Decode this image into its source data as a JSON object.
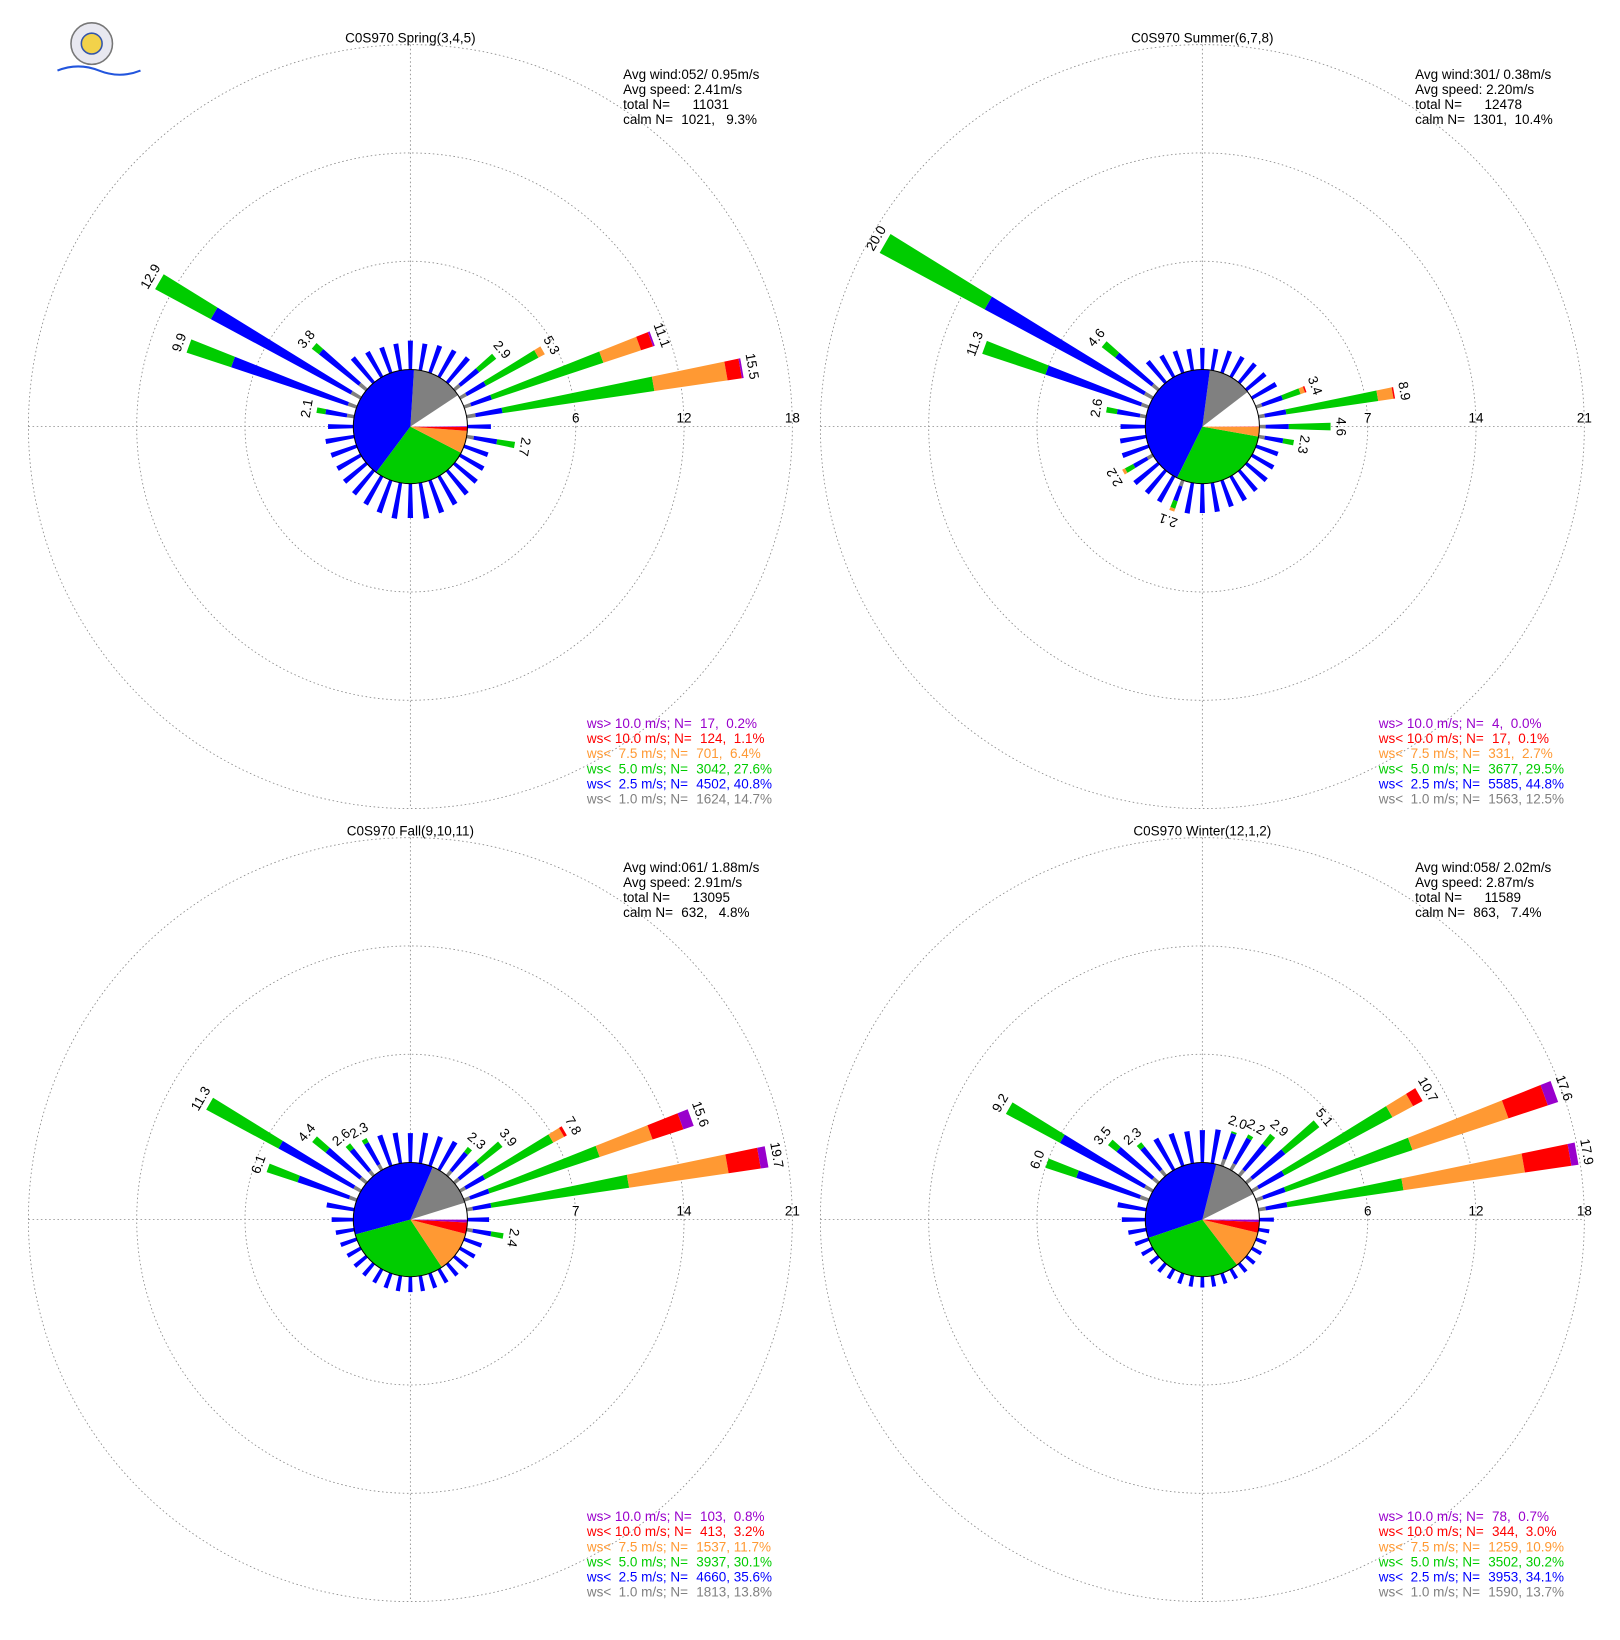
{
  "chart_data": [
    {
      "type": "windrose",
      "title": "C0S970 Spring(3,4,5)",
      "stats": [
        "Avg wind:052/ 0.95m/s",
        "Avg speed: 2.41m/s",
        "total N=      11031"
      ],
      "calm": {
        "label": "calm N=",
        "n": 1021,
        "pct": {
          "value": 9.3,
          "label": ",   9.3%"
        }
      },
      "ylim": [
        0,
        18
      ],
      "yticks": [
        6,
        12,
        18
      ],
      "series": [
        {
          "name": "ws<  1.0 m/s; N=",
          "color": "#808080",
          "n": 1624,
          "pct": {
            "value": 14.7,
            "label": ", 14.7%"
          }
        },
        {
          "name": "ws<  2.5 m/s; N=",
          "color": "#0000ff",
          "n": 4502,
          "pct": {
            "value": 40.8,
            "label": ", 40.8%"
          }
        },
        {
          "name": "ws<  5.0 m/s; N=",
          "color": "#00cc00",
          "n": 3042,
          "pct": {
            "value": 27.6,
            "label": ", 27.6%"
          }
        },
        {
          "name": "ws<  7.5 m/s; N=",
          "color": "#ff9933",
          "n": 701,
          "pct": {
            "value": 6.4,
            "label": ",  6.4%"
          }
        },
        {
          "name": "ws< 10.0 m/s; N=",
          "color": "#ff0000",
          "n": 124,
          "pct": {
            "value": 1.1,
            "label": ",  1.1%"
          }
        },
        {
          "name": "ws> 10.0 m/s; N=",
          "color": "#9900cc",
          "n": 17,
          "pct": {
            "value": 0.2,
            "label": ",  0.2%"
          }
        }
      ],
      "spokes": [
        {
          "dir": 50,
          "values": [
            0.4,
            1.3,
            1.2
          ],
          "total": {
            "value": 2.9,
            "label": "2.9"
          }
        },
        {
          "dir": 60,
          "values": [
            0.4,
            1.2,
            3.3,
            0.4
          ],
          "total": {
            "value": 5.3,
            "label": "5.3"
          }
        },
        {
          "dir": 70,
          "values": [
            0.4,
            1.2,
            6.5,
            2.2,
            0.7,
            0.1
          ],
          "total": {
            "value": 11.1,
            "label": "11.1"
          }
        },
        {
          "dir": 80,
          "values": [
            0.5,
            1.5,
            8.5,
            4.1,
            0.8,
            0.1
          ],
          "total": {
            "value": 15.5,
            "label": "15.5"
          }
        },
        {
          "dir": 100,
          "values": [
            0.4,
            1.3,
            1.0
          ],
          "total": {
            "value": 2.7,
            "label": "2.7"
          }
        },
        {
          "dir": 280,
          "values": [
            0.4,
            1.2,
            0.5
          ],
          "total": {
            "value": 2.1,
            "label": "2.1"
          }
        },
        {
          "dir": 290,
          "values": [
            0.5,
            6.8,
            2.6
          ],
          "total": {
            "value": 9.9,
            "label": "9.9"
          }
        },
        {
          "dir": 300,
          "values": [
            0.6,
            8.8,
            3.5
          ],
          "total": {
            "value": 12.9,
            "label": "12.9"
          }
        },
        {
          "dir": 310,
          "values": [
            0.5,
            2.8,
            0.5
          ],
          "total": {
            "value": 3.8,
            "label": "3.8"
          }
        }
      ],
      "minor": [
        1.6,
        1.5,
        1.6,
        1.7,
        1.8,
        null,
        null,
        null,
        null,
        1.3,
        null,
        1.4,
        1.5,
        1.6,
        1.7,
        1.8,
        1.9,
        2.0,
        1.9,
        2.0,
        1.9,
        1.8,
        1.7,
        1.6,
        1.5,
        1.5,
        1.6,
        1.4,
        null,
        null,
        null,
        null,
        1.8,
        1.6,
        1.5,
        1.5
      ]
    },
    {
      "type": "windrose",
      "title": "C0S970 Summer(6,7,8)",
      "stats": [
        "Avg wind:301/ 0.38m/s",
        "Avg speed: 2.20m/s",
        "total N=      12478"
      ],
      "calm": {
        "label": "calm N=",
        "n": 1301,
        "pct": {
          "value": 10.4,
          "label": ",  10.4%"
        }
      },
      "ylim": [
        0,
        21
      ],
      "yticks": [
        7,
        14,
        21
      ],
      "series": [
        {
          "name": "ws<  1.0 m/s; N=",
          "color": "#808080",
          "n": 1563,
          "pct": {
            "value": 12.5,
            "label": ", 12.5%"
          }
        },
        {
          "name": "ws<  2.5 m/s; N=",
          "color": "#0000ff",
          "n": 5585,
          "pct": {
            "value": 44.8,
            "label": ", 44.8%"
          }
        },
        {
          "name": "ws<  5.0 m/s; N=",
          "color": "#00cc00",
          "n": 3677,
          "pct": {
            "value": 29.5,
            "label": ", 29.5%"
          }
        },
        {
          "name": "ws<  7.5 m/s; N=",
          "color": "#ff9933",
          "n": 331,
          "pct": {
            "value": 2.7,
            "label": ",  2.7%"
          }
        },
        {
          "name": "ws< 10.0 m/s; N=",
          "color": "#ff0000",
          "n": 17,
          "pct": {
            "value": 0.1,
            "label": ",  0.1%"
          }
        },
        {
          "name": "ws> 10.0 m/s; N=",
          "color": "#9900cc",
          "n": 4,
          "pct": {
            "value": 0,
            "label": ",  0.0%"
          }
        }
      ],
      "spokes": [
        {
          "dir": 70,
          "values": [
            0.4,
            1.4,
            1.2,
            0.3,
            0.1
          ],
          "total": {
            "value": 3.4,
            "label": "3.4"
          }
        },
        {
          "dir": 80,
          "values": [
            0.4,
            1.4,
            6.0,
            1.0,
            0.1
          ],
          "total": {
            "value": 8.9,
            "label": "8.9"
          }
        },
        {
          "dir": 90,
          "values": [
            0.4,
            1.5,
            2.7
          ],
          "total": {
            "value": 4.6,
            "label": "4.6"
          }
        },
        {
          "dir": 100,
          "values": [
            0.4,
            1.2,
            0.7
          ],
          "total": {
            "value": 2.3,
            "label": "2.3"
          }
        },
        {
          "dir": 200,
          "values": [
            0.4,
            1.0,
            0.5,
            0.2
          ],
          "total": {
            "value": 2.1,
            "label": "2.1"
          }
        },
        {
          "dir": 240,
          "values": [
            0.4,
            1.0,
            0.6,
            0.2
          ],
          "total": {
            "value": 2.2,
            "label": "2.2"
          }
        },
        {
          "dir": 280,
          "values": [
            0.4,
            1.5,
            0.7
          ],
          "total": {
            "value": 2.6,
            "label": "2.6"
          }
        },
        {
          "dir": 290,
          "values": [
            0.5,
            6.5,
            4.3
          ],
          "total": {
            "value": 11.3,
            "label": "11.3"
          }
        },
        {
          "dir": 300,
          "values": [
            0.6,
            11.7,
            7.7
          ],
          "total": {
            "value": 20,
            "label": "20.0"
          }
        },
        {
          "dir": 310,
          "values": [
            0.5,
            3.0,
            1.1
          ],
          "total": {
            "value": 4.6,
            "label": "4.6"
          }
        }
      ],
      "minor": [
        1.4,
        1.4,
        1.5,
        1.5,
        1.6,
        1.6,
        1.8,
        null,
        null,
        null,
        null,
        1.5,
        1.6,
        1.7,
        1.7,
        1.8,
        1.8,
        1.9,
        1.9,
        2.0,
        null,
        1.9,
        1.9,
        2.0,
        null,
        1.8,
        1.7,
        1.6,
        null,
        null,
        null,
        null,
        1.8,
        1.6,
        1.5,
        1.4
      ]
    },
    {
      "type": "windrose",
      "title": "C0S970 Fall(9,10,11)",
      "stats": [
        "Avg wind:061/ 1.88m/s",
        "Avg speed: 2.91m/s",
        "total N=      13095"
      ],
      "calm": {
        "label": "calm N=",
        "n": 632,
        "pct": {
          "value": 4.8,
          "label": ",   4.8%"
        }
      },
      "ylim": [
        0,
        21
      ],
      "yticks": [
        7,
        14,
        21
      ],
      "series": [
        {
          "name": "ws<  1.0 m/s; N=",
          "color": "#808080",
          "n": 1813,
          "pct": {
            "value": 13.8,
            "label": ", 13.8%"
          }
        },
        {
          "name": "ws<  2.5 m/s; N=",
          "color": "#0000ff",
          "n": 4660,
          "pct": {
            "value": 35.6,
            "label": ", 35.6%"
          }
        },
        {
          "name": "ws<  5.0 m/s; N=",
          "color": "#00cc00",
          "n": 3937,
          "pct": {
            "value": 30.1,
            "label": ", 30.1%"
          }
        },
        {
          "name": "ws<  7.5 m/s; N=",
          "color": "#ff9933",
          "n": 1537,
          "pct": {
            "value": 11.7,
            "label": ", 11.7%"
          }
        },
        {
          "name": "ws< 10.0 m/s; N=",
          "color": "#ff0000",
          "n": 413,
          "pct": {
            "value": 3.2,
            "label": ",  3.2%"
          }
        },
        {
          "name": "ws> 10.0 m/s; N=",
          "color": "#9900cc",
          "n": 103,
          "pct": {
            "value": 0.8,
            "label": ",  0.8%"
          }
        }
      ],
      "spokes": [
        {
          "dir": 40,
          "values": [
            0.4,
            1.5,
            0.4
          ],
          "total": {
            "value": 2.3,
            "label": "2.3"
          }
        },
        {
          "dir": 50,
          "values": [
            0.4,
            1.6,
            1.9
          ],
          "total": {
            "value": 3.9,
            "label": "3.9"
          }
        },
        {
          "dir": 60,
          "values": [
            0.4,
            1.4,
            5.0,
            0.8,
            0.2
          ],
          "total": {
            "value": 7.8,
            "label": "7.8"
          }
        },
        {
          "dir": 70,
          "values": [
            0.4,
            1.3,
            7.5,
            3.6,
            2.1,
            0.7
          ],
          "total": {
            "value": 15.6,
            "label": "15.6"
          }
        },
        {
          "dir": 80,
          "values": [
            0.4,
            1.2,
            9.0,
            6.5,
            2.1,
            0.5
          ],
          "total": {
            "value": 19.7,
            "label": "19.7"
          }
        },
        {
          "dir": 100,
          "values": [
            0.4,
            1.2,
            0.8
          ],
          "total": {
            "value": 2.4,
            "label": "2.4"
          }
        },
        {
          "dir": 290,
          "values": [
            0.5,
            3.5,
            2.1
          ],
          "total": {
            "value": 6.1,
            "label": "6.1"
          }
        },
        {
          "dir": 300,
          "values": [
            0.5,
            5.5,
            5.3
          ],
          "total": {
            "value": 11.3,
            "label": "11.3"
          }
        },
        {
          "dir": 310,
          "values": [
            0.5,
            2.8,
            1.1
          ],
          "total": {
            "value": 4.4,
            "label": "4.4"
          }
        },
        {
          "dir": 320,
          "values": [
            0.4,
            1.8,
            0.4
          ],
          "total": {
            "value": 2.6,
            "label": "2.6"
          }
        },
        {
          "dir": 330,
          "values": [
            0.4,
            1.6,
            0.3
          ],
          "total": {
            "value": 2.3,
            "label": "2.3"
          }
        }
      ],
      "minor": [
        1.9,
        2.0,
        2.0,
        2.1,
        null,
        null,
        null,
        null,
        null,
        1.4,
        null,
        1.2,
        1.1,
        1.1,
        1.0,
        1.0,
        1.0,
        1.0,
        1.0,
        1.0,
        1.0,
        1.0,
        1.0,
        1.0,
        1.0,
        1.1,
        1.2,
        1.4,
        1.8,
        null,
        null,
        null,
        null,
        null,
        2.1,
        2.0
      ]
    },
    {
      "type": "windrose",
      "title": "C0S970 Winter(12,1,2)",
      "stats": [
        "Avg wind:058/ 2.02m/s",
        "Avg speed: 2.87m/s",
        "total N=      11589"
      ],
      "calm": {
        "label": "calm N=",
        "n": 863,
        "pct": {
          "value": 7.4,
          "label": ",   7.4%"
        }
      },
      "ylim": [
        0,
        18
      ],
      "yticks": [
        6,
        12,
        18
      ],
      "series": [
        {
          "name": "ws<  1.0 m/s; N=",
          "color": "#808080",
          "n": 1590,
          "pct": {
            "value": 13.7,
            "label": ", 13.7%"
          }
        },
        {
          "name": "ws<  2.5 m/s; N=",
          "color": "#0000ff",
          "n": 3953,
          "pct": {
            "value": 34.1,
            "label": ", 34.1%"
          }
        },
        {
          "name": "ws<  5.0 m/s; N=",
          "color": "#00cc00",
          "n": 3502,
          "pct": {
            "value": 30.2,
            "label": ", 30.2%"
          }
        },
        {
          "name": "ws<  7.5 m/s; N=",
          "color": "#ff9933",
          "n": 1259,
          "pct": {
            "value": 10.9,
            "label": ", 10.9%"
          }
        },
        {
          "name": "ws< 10.0 m/s; N=",
          "color": "#ff0000",
          "n": 344,
          "pct": {
            "value": 3,
            "label": ",  3.0%"
          }
        },
        {
          "name": "ws> 10.0 m/s; N=",
          "color": "#9900cc",
          "n": 78,
          "pct": {
            "value": 0.7,
            "label": ",  0.7%"
          }
        }
      ],
      "spokes": [
        {
          "dir": 20,
          "values": [
            0.4,
            1.5,
            0.1
          ],
          "total": {
            "value": 2,
            "label": "2.0"
          }
        },
        {
          "dir": 30,
          "values": [
            0.4,
            1.6,
            0.2
          ],
          "total": {
            "value": 2.2,
            "label": "2.2"
          }
        },
        {
          "dir": 40,
          "values": [
            0.4,
            1.8,
            0.7
          ],
          "total": {
            "value": 2.9,
            "label": "2.9"
          }
        },
        {
          "dir": 50,
          "values": [
            0.4,
            2.3,
            2.4
          ],
          "total": {
            "value": 5.1,
            "label": "5.1"
          }
        },
        {
          "dir": 60,
          "values": [
            0.4,
            1.6,
            6.8,
            1.3,
            0.6
          ],
          "total": {
            "value": 10.7,
            "label": "10.7"
          }
        },
        {
          "dir": 70,
          "values": [
            0.4,
            1.3,
            7.4,
            5.6,
            2.3,
            0.6
          ],
          "total": {
            "value": 17.6,
            "label": "17.6"
          }
        },
        {
          "dir": 80,
          "values": [
            0.4,
            1.2,
            6.5,
            6.8,
            2.6,
            0.4
          ],
          "total": {
            "value": 17.9,
            "label": "17.9"
          }
        },
        {
          "dir": 290,
          "values": [
            0.5,
            3.7,
            1.8
          ],
          "total": {
            "value": 6,
            "label": "6.0"
          }
        },
        {
          "dir": 300,
          "values": [
            0.5,
            5.3,
            3.4
          ],
          "total": {
            "value": 9.2,
            "label": "9.2"
          }
        },
        {
          "dir": 310,
          "values": [
            0.4,
            2.5,
            0.6
          ],
          "total": {
            "value": 3.5,
            "label": "3.5"
          }
        },
        {
          "dir": 320,
          "values": [
            0.4,
            1.6,
            0.3
          ],
          "total": {
            "value": 2.3,
            "label": "2.3"
          }
        }
      ],
      "minor": [
        1.8,
        1.9,
        null,
        null,
        null,
        null,
        null,
        null,
        null,
        0.8,
        0.6,
        0.6,
        0.6,
        0.6,
        0.6,
        0.6,
        0.6,
        0.6,
        0.6,
        0.6,
        0.6,
        0.6,
        0.6,
        0.6,
        0.7,
        0.8,
        1.0,
        1.3,
        1.6,
        null,
        null,
        null,
        null,
        2.0,
        1.9,
        1.8
      ]
    }
  ]
}
